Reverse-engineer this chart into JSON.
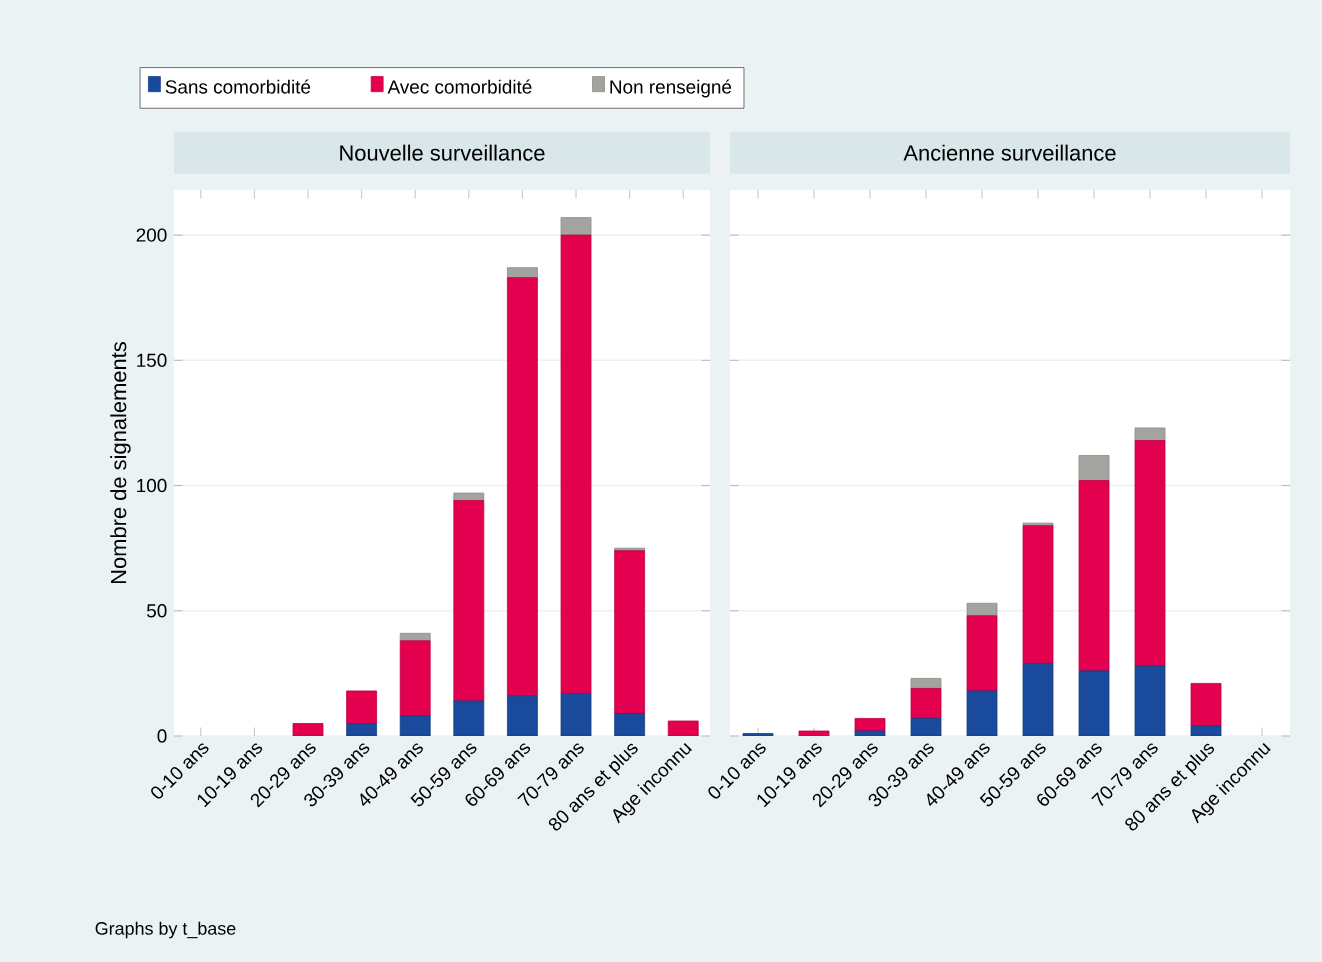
{
  "chart_data": [
    {
      "type": "bar",
      "stacked": true,
      "title": "Nouvelle surveillance",
      "ylabel": "Nombre de signalements",
      "categories": [
        "0-10 ans",
        "10-19 ans",
        "20-29 ans",
        "30-39 ans",
        "40-49 ans",
        "50-59 ans",
        "60-69 ans",
        "70-79 ans",
        "80 ans et plus",
        "Age inconnu"
      ],
      "series": [
        {
          "name": "Sans comorbidité",
          "color": "#1a4a9c",
          "values": [
            0,
            0,
            0,
            5,
            8,
            14,
            16,
            17,
            9,
            0
          ]
        },
        {
          "name": "Avec comorbidité",
          "color": "#e3004f",
          "values": [
            0,
            0,
            5,
            13,
            30,
            80,
            167,
            183,
            65,
            6
          ]
        },
        {
          "name": "Non renseigné",
          "color": "#a3a3a0",
          "values": [
            0,
            0,
            0,
            0,
            3,
            3,
            4,
            7,
            1,
            0
          ]
        }
      ],
      "ylim": [
        0,
        218
      ],
      "yticks": [
        0,
        50,
        100,
        150,
        200
      ],
      "grid": "y",
      "legend": "top",
      "annotations": [
        "Graphs by t_base"
      ]
    },
    {
      "type": "bar",
      "stacked": true,
      "title": "Ancienne surveillance",
      "categories": [
        "0-10 ans",
        "10-19 ans",
        "20-29 ans",
        "30-39 ans",
        "40-49 ans",
        "50-59 ans",
        "60-69 ans",
        "70-79 ans",
        "80 ans et plus",
        "Age inconnu"
      ],
      "series": [
        {
          "color": "#1a4a9c",
          "values": [
            1,
            0,
            2,
            7,
            18,
            29,
            26,
            28,
            4,
            0
          ]
        },
        {
          "color": "#e3004f",
          "values": [
            0,
            2,
            5,
            12,
            30,
            55,
            76,
            90,
            17,
            0
          ]
        },
        {
          "color": "#a3a3a0",
          "values": [
            0,
            0,
            0,
            4,
            5,
            1,
            10,
            5,
            0,
            0
          ]
        }
      ],
      "ylim": [
        0,
        218
      ],
      "yticks": [
        0,
        50,
        100,
        150,
        200
      ],
      "grid": "y",
      "tick_labels": "x"
    }
  ]
}
